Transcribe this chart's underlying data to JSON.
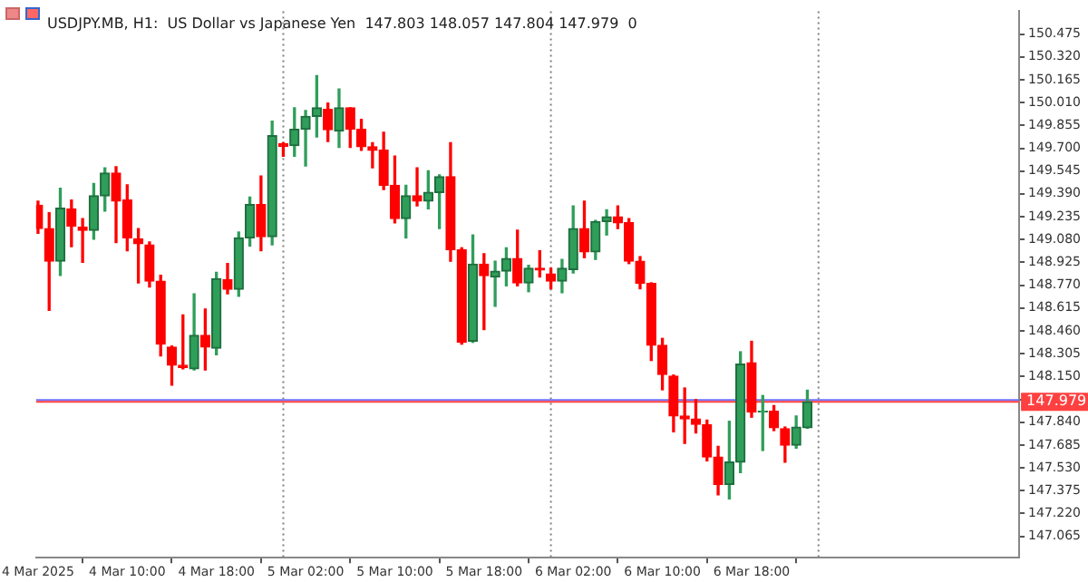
{
  "chart_data": {
    "type": "candlestick",
    "title": "USDJPY.MB, H1:  US Dollar vs Japanese Yen  147.803 148.057 147.804 147.979  0",
    "x": [
      "2025-03-04T02:00",
      "2025-03-04T03:00",
      "2025-03-04T04:00",
      "2025-03-04T05:00",
      "2025-03-04T06:00",
      "2025-03-04T07:00",
      "2025-03-04T08:00",
      "2025-03-04T09:00",
      "2025-03-04T10:00",
      "2025-03-04T11:00",
      "2025-03-04T12:00",
      "2025-03-04T13:00",
      "2025-03-04T14:00",
      "2025-03-04T15:00",
      "2025-03-04T16:00",
      "2025-03-04T17:00",
      "2025-03-04T18:00",
      "2025-03-04T19:00",
      "2025-03-04T20:00",
      "2025-03-04T21:00",
      "2025-03-04T22:00",
      "2025-03-04T23:00",
      "2025-03-05T00:00",
      "2025-03-05T01:00",
      "2025-03-05T02:00",
      "2025-03-05T03:00",
      "2025-03-05T04:00",
      "2025-03-05T05:00",
      "2025-03-05T06:00",
      "2025-03-05T07:00",
      "2025-03-05T08:00",
      "2025-03-05T09:00",
      "2025-03-05T10:00",
      "2025-03-05T11:00",
      "2025-03-05T12:00",
      "2025-03-05T13:00",
      "2025-03-05T14:00",
      "2025-03-05T15:00",
      "2025-03-05T16:00",
      "2025-03-05T17:00",
      "2025-03-05T18:00",
      "2025-03-05T19:00",
      "2025-03-05T20:00",
      "2025-03-05T21:00",
      "2025-03-05T22:00",
      "2025-03-05T23:00",
      "2025-03-06T00:00",
      "2025-03-06T01:00",
      "2025-03-06T02:00",
      "2025-03-06T03:00",
      "2025-03-06T04:00",
      "2025-03-06T05:00",
      "2025-03-06T06:00",
      "2025-03-06T07:00",
      "2025-03-06T08:00",
      "2025-03-06T09:00",
      "2025-03-06T10:00",
      "2025-03-06T11:00",
      "2025-03-06T12:00",
      "2025-03-06T13:00",
      "2025-03-06T14:00",
      "2025-03-06T15:00",
      "2025-03-06T16:00",
      "2025-03-06T17:00",
      "2025-03-06T18:00",
      "2025-03-06T19:00",
      "2025-03-06T20:00",
      "2025-03-06T21:00",
      "2025-03-06T22:00",
      "2025-03-06T23:00"
    ],
    "ohlc": [
      [
        149.313,
        149.341,
        149.123,
        149.155
      ],
      [
        149.155,
        149.262,
        148.6,
        148.933
      ],
      [
        148.933,
        149.428,
        148.837,
        149.293
      ],
      [
        149.289,
        149.349,
        149.032,
        149.171
      ],
      [
        149.163,
        149.222,
        148.925,
        149.143
      ],
      [
        149.143,
        149.46,
        149.083,
        149.377
      ],
      [
        149.377,
        149.567,
        149.274,
        149.531
      ],
      [
        149.531,
        149.575,
        149.059,
        149.341
      ],
      [
        149.349,
        149.452,
        149.004,
        149.091
      ],
      [
        149.083,
        149.155,
        148.786,
        149.052
      ],
      [
        149.044,
        149.064,
        148.758,
        148.798
      ],
      [
        148.798,
        148.837,
        148.29,
        148.37
      ],
      [
        148.35,
        148.358,
        148.092,
        148.227
      ],
      [
        148.227,
        148.568,
        148.203,
        148.211
      ],
      [
        148.203,
        148.711,
        148.195,
        148.429
      ],
      [
        148.429,
        148.608,
        148.195,
        148.35
      ],
      [
        148.342,
        148.857,
        148.298,
        148.814
      ],
      [
        148.806,
        148.917,
        148.711,
        148.742
      ],
      [
        148.742,
        149.131,
        148.695,
        149.091
      ],
      [
        149.091,
        149.369,
        149.036,
        149.317
      ],
      [
        149.317,
        149.512,
        149.004,
        149.099
      ],
      [
        149.099,
        149.884,
        149.044,
        149.785
      ],
      [
        149.73,
        149.738,
        149.646,
        149.714
      ],
      [
        149.718,
        149.975,
        149.646,
        149.829
      ],
      [
        149.829,
        149.956,
        149.579,
        149.916
      ],
      [
        149.916,
        150.193,
        149.777,
        149.975
      ],
      [
        149.964,
        150.007,
        149.745,
        149.825
      ],
      [
        149.817,
        150.102,
        149.706,
        149.975
      ],
      [
        149.975,
        149.975,
        149.706,
        149.829
      ],
      [
        149.829,
        149.896,
        149.686,
        149.71
      ],
      [
        149.71,
        149.738,
        149.567,
        149.686
      ],
      [
        149.686,
        149.809,
        149.42,
        149.448
      ],
      [
        149.448,
        149.646,
        149.194,
        149.222
      ],
      [
        149.222,
        149.448,
        149.091,
        149.377
      ],
      [
        149.377,
        149.567,
        149.309,
        149.341
      ],
      [
        149.341,
        149.547,
        149.289,
        149.4
      ],
      [
        149.4,
        149.519,
        149.155,
        149.507
      ],
      [
        149.507,
        149.738,
        148.933,
        149.012
      ],
      [
        149.012,
        149.024,
        148.37,
        148.382
      ],
      [
        148.39,
        149.111,
        148.382,
        148.913
      ],
      [
        148.913,
        148.984,
        148.469,
        148.834
      ],
      [
        148.826,
        148.933,
        148.627,
        148.865
      ],
      [
        148.865,
        149.024,
        148.766,
        148.952
      ],
      [
        148.952,
        149.143,
        148.766,
        148.786
      ],
      [
        148.786,
        148.905,
        148.726,
        148.885
      ],
      [
        148.885,
        149.004,
        148.826,
        148.873
      ],
      [
        148.846,
        148.885,
        148.746,
        148.798
      ],
      [
        148.798,
        148.945,
        148.719,
        148.885
      ],
      [
        148.877,
        149.309,
        148.853,
        149.155
      ],
      [
        149.155,
        149.341,
        148.957,
        148.996
      ],
      [
        148.996,
        149.21,
        148.945,
        149.202
      ],
      [
        149.202,
        149.282,
        149.111,
        149.234
      ],
      [
        149.234,
        149.309,
        149.155,
        149.194
      ],
      [
        149.194,
        149.222,
        148.917,
        148.933
      ],
      [
        148.933,
        148.964,
        148.746,
        148.782
      ],
      [
        148.782,
        148.786,
        148.259,
        148.362
      ],
      [
        148.362,
        148.409,
        148.06,
        148.164
      ],
      [
        148.152,
        148.16,
        147.775,
        147.882
      ],
      [
        147.882,
        148.072,
        147.696,
        147.862
      ],
      [
        147.862,
        147.993,
        147.767,
        147.826
      ],
      [
        147.822,
        147.854,
        147.577,
        147.604
      ],
      [
        147.604,
        147.676,
        147.347,
        147.418
      ],
      [
        147.418,
        147.846,
        147.319,
        147.569
      ],
      [
        147.569,
        148.318,
        147.497,
        148.235
      ],
      [
        148.243,
        148.389,
        147.874,
        147.91
      ],
      [
        147.91,
        148.021,
        147.648,
        147.914
      ],
      [
        147.914,
        147.953,
        147.783,
        147.803
      ],
      [
        147.795,
        147.807,
        147.569,
        147.684
      ],
      [
        147.684,
        147.882,
        147.664,
        147.807
      ],
      [
        147.803,
        148.057,
        147.799,
        147.979
      ]
    ],
    "xlim": [
      "2025-03-04T01:50",
      "2025-03-07T18:00"
    ],
    "xticks": [
      {
        "value": "2025-03-04T02:00",
        "label": "4 Mar 2025"
      },
      {
        "value": "2025-03-04T10:00",
        "label": "4 Mar 10:00"
      },
      {
        "value": "2025-03-04T18:00",
        "label": "4 Mar 18:00"
      },
      {
        "value": "2025-03-05T02:00",
        "label": "5 Mar 02:00"
      },
      {
        "value": "2025-03-05T10:00",
        "label": "5 Mar 10:00"
      },
      {
        "value": "2025-03-05T18:00",
        "label": "5 Mar 18:00"
      },
      {
        "value": "2025-03-06T02:00",
        "label": "6 Mar 02:00"
      },
      {
        "value": "2025-03-06T10:00",
        "label": "6 Mar 10:00"
      },
      {
        "value": "2025-03-06T18:00",
        "label": "6 Mar 18:00"
      }
    ],
    "ylim": [
      146.92,
      150.63
    ],
    "yticks": [
      {
        "value": 147.065,
        "label": "147.065"
      },
      {
        "value": 147.22,
        "label": "147.220"
      },
      {
        "value": 147.375,
        "label": "147.375"
      },
      {
        "value": 147.53,
        "label": "147.530"
      },
      {
        "value": 147.685,
        "label": "147.685"
      },
      {
        "value": 147.84,
        "label": "147.840"
      },
      {
        "value": 147.995,
        "label": null
      },
      {
        "value": 148.15,
        "label": "148.150"
      },
      {
        "value": 148.305,
        "label": "148.305"
      },
      {
        "value": 148.46,
        "label": "148.460"
      },
      {
        "value": 148.615,
        "label": "148.615"
      },
      {
        "value": 148.77,
        "label": "148.770"
      },
      {
        "value": 148.925,
        "label": "148.925"
      },
      {
        "value": 149.08,
        "label": "149.080"
      },
      {
        "value": 149.235,
        "label": "149.235"
      },
      {
        "value": 149.39,
        "label": "149.390"
      },
      {
        "value": 149.545,
        "label": "149.545"
      },
      {
        "value": 149.7,
        "label": "149.700"
      },
      {
        "value": 149.855,
        "label": "149.855"
      },
      {
        "value": 150.01,
        "label": "150.010"
      },
      {
        "value": 150.165,
        "label": "150.165"
      },
      {
        "value": 150.32,
        "label": "150.320"
      },
      {
        "value": 150.475,
        "label": "150.475"
      }
    ],
    "ref_lines": [
      {
        "axis": "x",
        "value": "2025-03-05T00:00",
        "color": "#808080",
        "line_style": "dotted"
      },
      {
        "axis": "x",
        "value": "2025-03-06T00:00",
        "color": "#808080",
        "line_style": "dotted"
      },
      {
        "axis": "x",
        "value": "2025-03-07T00:00",
        "color": "#808080",
        "line_style": "dotted"
      },
      {
        "axis": "y",
        "value": 147.99,
        "color": "#6f6fff",
        "line_style": "solid"
      },
      {
        "axis": "y",
        "value": 147.979,
        "label": "147.979",
        "color": "#ff4040",
        "line_style": "solid"
      }
    ],
    "grid": false,
    "legend": false
  }
}
